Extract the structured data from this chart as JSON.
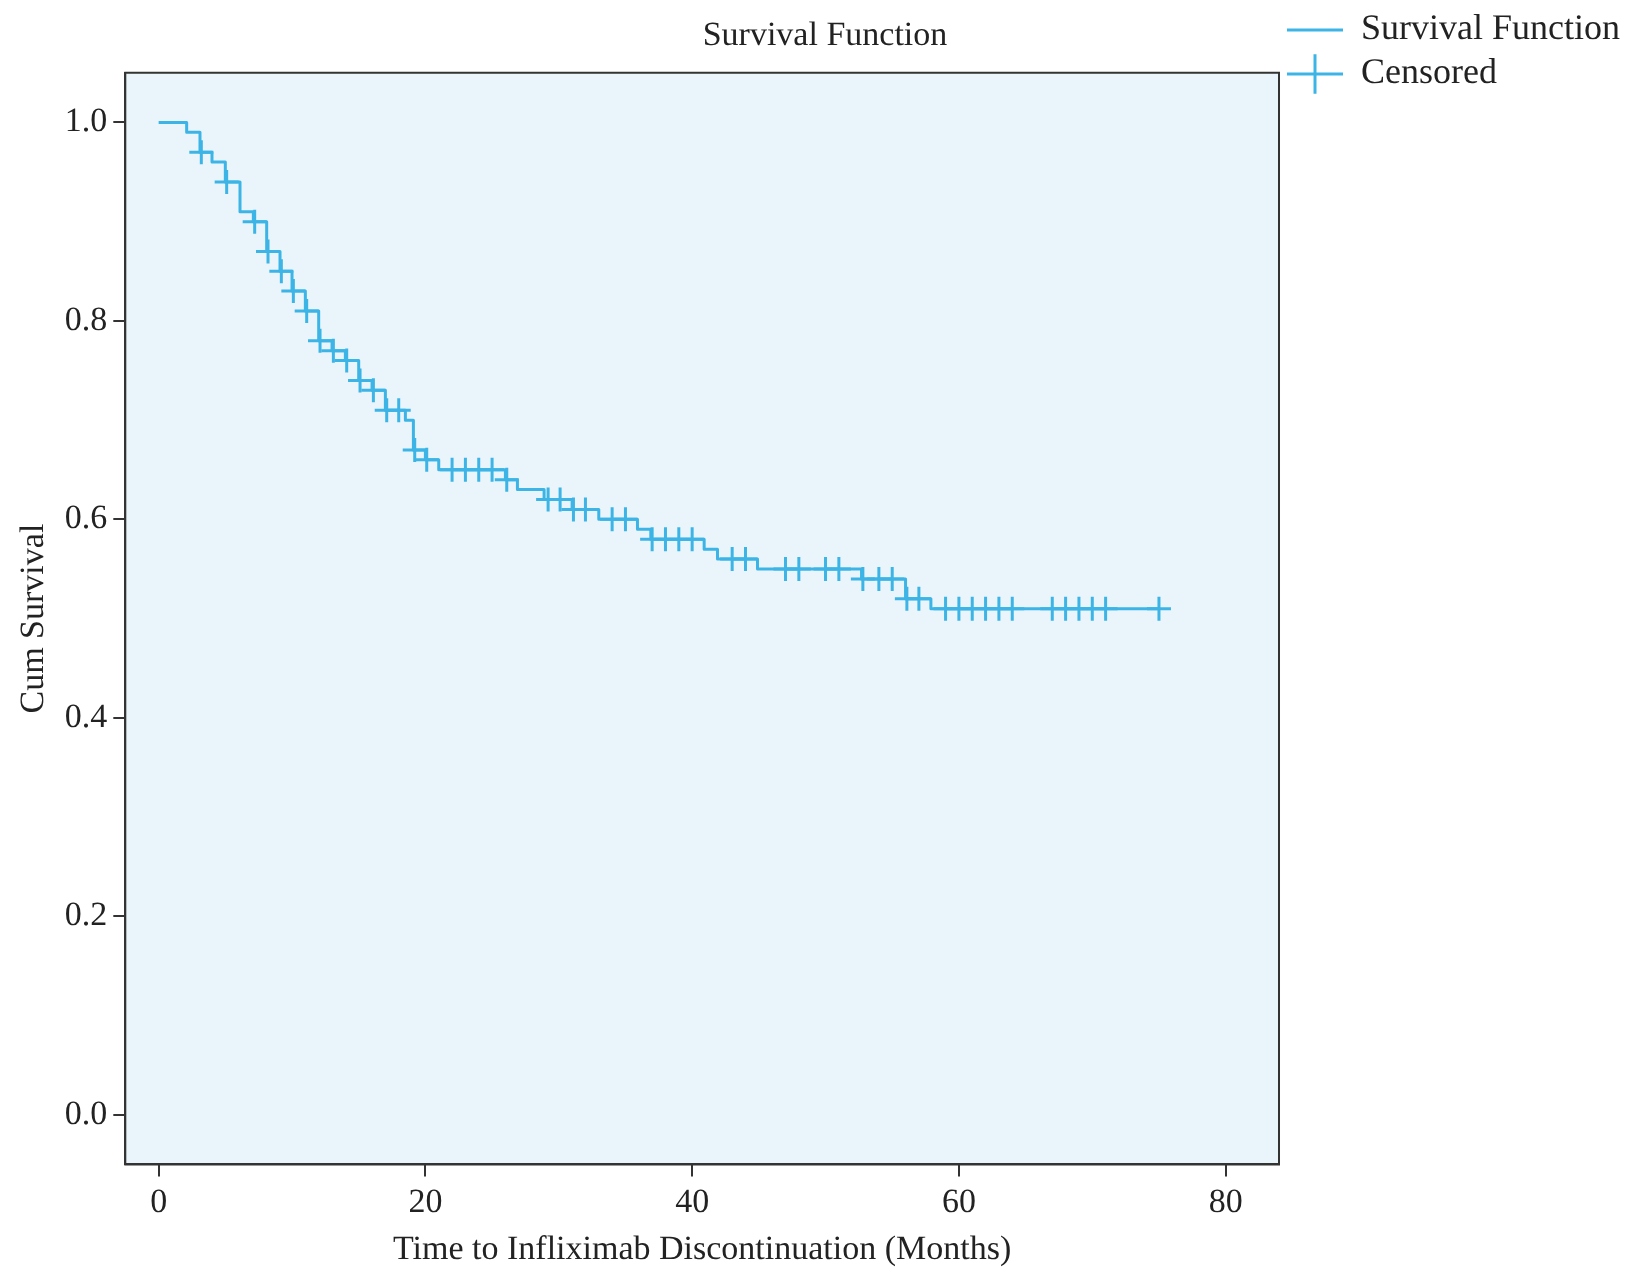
{
  "chart_data": {
    "type": "step",
    "title": "Survival Function",
    "xlabel": "Time to Infliximab Discontinuation (Months)",
    "ylabel": "Cum Survival",
    "xlim": [
      -2.5,
      84
    ],
    "xticks": [
      0,
      20,
      40,
      60,
      80
    ],
    "ylim": [
      -0.05,
      1.05
    ],
    "yticks": [
      {
        "value": 0,
        "label": "0.0"
      },
      {
        "value": 0.2,
        "label": "0.2"
      },
      {
        "value": 0.4,
        "label": "0.4"
      },
      {
        "value": 0.6,
        "label": "0.6"
      },
      {
        "value": 0.8,
        "label": "0.8"
      },
      {
        "value": 1,
        "label": "1.0"
      }
    ],
    "grid": false,
    "legend": "right",
    "series": [
      {
        "name": "Survival Function",
        "color": "#3cb4e5",
        "marker": "none",
        "x": [
          0,
          2.1,
          3.1,
          4,
          5,
          6.1,
          7.1,
          8.1,
          9.1,
          10,
          11,
          12,
          13,
          14,
          15,
          16,
          17,
          18.5,
          19.1,
          20,
          21,
          26,
          26.9,
          27.9,
          28.9,
          31,
          33,
          35.9,
          36.9,
          40.9,
          41.9,
          44.9,
          52.7,
          56,
          57.9,
          75
        ],
        "values": [
          1.0,
          0.99,
          0.97,
          0.96,
          0.94,
          0.91,
          0.9,
          0.87,
          0.85,
          0.83,
          0.81,
          0.78,
          0.77,
          0.76,
          0.74,
          0.73,
          0.71,
          0.7,
          0.67,
          0.66,
          0.65,
          0.64,
          0.63,
          0.63,
          0.62,
          0.61,
          0.6,
          0.59,
          0.58,
          0.57,
          0.56,
          0.55,
          0.54,
          0.52,
          0.51,
          0.51
        ]
      },
      {
        "name": "Censored",
        "type": "scatter",
        "color": "#3cb4e5",
        "marker": "cross",
        "x": [
          3.2,
          5.1,
          7.2,
          8.2,
          9.2,
          10.1,
          11.1,
          12.1,
          13.1,
          14.1,
          15.1,
          16.1,
          17.1,
          18,
          19.2,
          20.1,
          22,
          23,
          24,
          25,
          26.1,
          29.2,
          30.1,
          31.1,
          32,
          34,
          35,
          37,
          38,
          39,
          40,
          43,
          44,
          47,
          48,
          50,
          51,
          52.8,
          54,
          55,
          56.1,
          57,
          59,
          60,
          61,
          62,
          63,
          64,
          67,
          68,
          69,
          70,
          71,
          75
        ],
        "values": [
          0.97,
          0.94,
          0.9,
          0.87,
          0.85,
          0.83,
          0.81,
          0.78,
          0.77,
          0.76,
          0.74,
          0.73,
          0.71,
          0.71,
          0.67,
          0.66,
          0.65,
          0.65,
          0.65,
          0.65,
          0.64,
          0.62,
          0.62,
          0.61,
          0.61,
          0.6,
          0.6,
          0.58,
          0.58,
          0.58,
          0.58,
          0.56,
          0.56,
          0.55,
          0.55,
          0.55,
          0.55,
          0.54,
          0.54,
          0.54,
          0.52,
          0.52,
          0.51,
          0.51,
          0.51,
          0.51,
          0.51,
          0.51,
          0.51,
          0.51,
          0.51,
          0.51,
          0.51,
          0.51
        ]
      }
    ]
  }
}
